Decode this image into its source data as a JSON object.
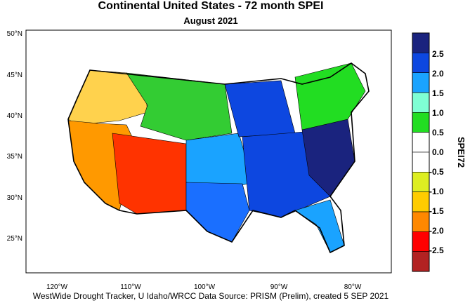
{
  "title": "Continental United States - 72 month SPEI",
  "subtitle": "August 2021",
  "footer": "WestWide Drought Tracker, U Idaho/WRCC Data Source: PRISM (Prelim), created  5 SEP 2021",
  "lat_labels": [
    "50°N",
    "45°N",
    "40°N",
    "35°N",
    "30°N",
    "25°N"
  ],
  "lon_labels": [
    "120°W",
    "110°W",
    "100°W",
    "90°W",
    "80°W"
  ],
  "legend": {
    "title": "SPEI72",
    "ticks": [
      "2.5",
      "2.0",
      "1.5",
      "1.0",
      "0.5",
      "0.0",
      "-0.5",
      "-1.0",
      "-1.5",
      "-2.0",
      "-2.5"
    ],
    "colors": [
      "#1a237e",
      "#0d47e0",
      "#1aa3ff",
      "#7fffd4",
      "#22dd22",
      "#ffffff",
      "#ffffff",
      "#ddee22",
      "#ffcc00",
      "#ff8800",
      "#ff0000",
      "#b22222"
    ]
  },
  "regions": [
    {
      "name": "pacific-northwest",
      "color": "#ffd24d"
    },
    {
      "name": "california",
      "color": "#ff9900"
    },
    {
      "name": "southwest",
      "color": "#ff3300"
    },
    {
      "name": "northern-rockies",
      "color": "#33cc33"
    },
    {
      "name": "great-plains",
      "color": "#1aa3ff"
    },
    {
      "name": "texas",
      "color": "#1a6fff"
    },
    {
      "name": "upper-midwest",
      "color": "#0d47e0"
    },
    {
      "name": "southeast",
      "color": "#0d47e0"
    },
    {
      "name": "atlantic-coast",
      "color": "#1a237e"
    },
    {
      "name": "northeast",
      "color": "#22dd22"
    },
    {
      "name": "florida",
      "color": "#1aa3ff"
    }
  ]
}
